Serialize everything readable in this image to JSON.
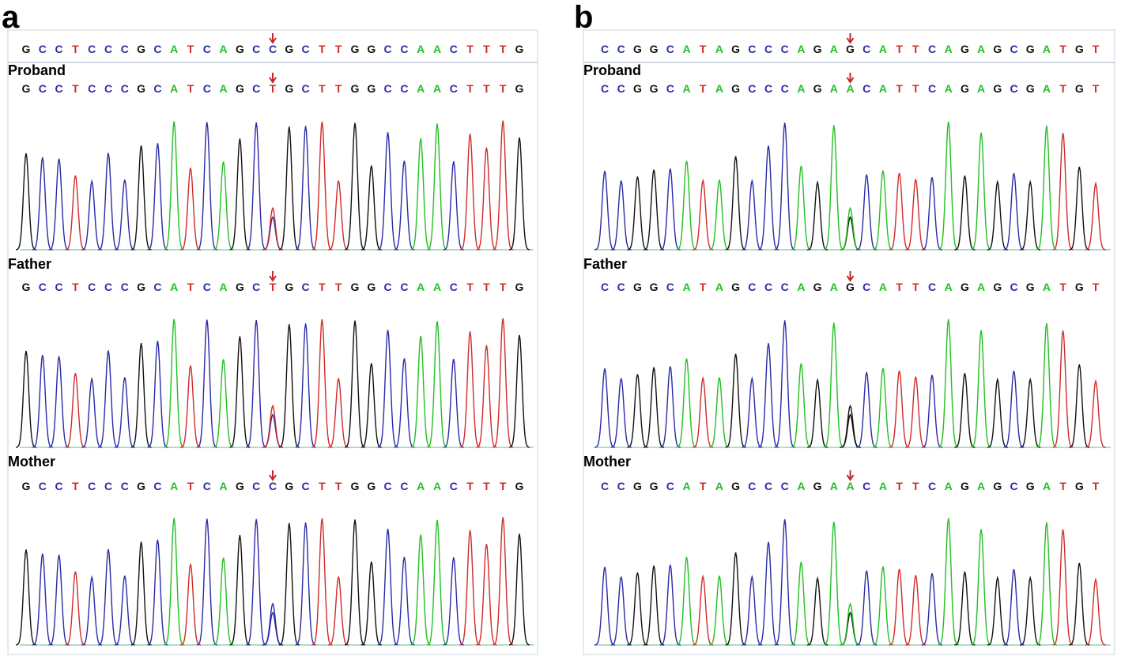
{
  "panels": [
    {
      "label": "a",
      "reference": "GCCTCCCGCATCAGCCGCTTGGCCAACTTTG",
      "tracks": [
        {
          "name": "Proband",
          "sequence": "GCCTCCCGCATCAGCTGCTTGGCCAACTTTG"
        },
        {
          "name": "Father",
          "sequence": "GCCTCCCGCATCAGCTGCTTGGCCAACTTTG"
        },
        {
          "name": "Mother",
          "sequence": "GCCTCCCGCATCAGCCGCTTGGCCAACTTTG"
        }
      ]
    },
    {
      "label": "b",
      "reference": "CCGGCATAGCCCAGAGCATTCAGAGCGATGT",
      "tracks": [
        {
          "name": "Proband",
          "sequence": "CCGGCATAGCCCAGAACATTCAGAGCGATGT"
        },
        {
          "name": "Father",
          "sequence": "CCGGCATAGCCCAGAGCATTCAGAGCGATGT"
        },
        {
          "name": "Mother",
          "sequence": "CCGGCATAGCCCAGAACATTCAGAGCGATGT"
        }
      ]
    }
  ]
}
